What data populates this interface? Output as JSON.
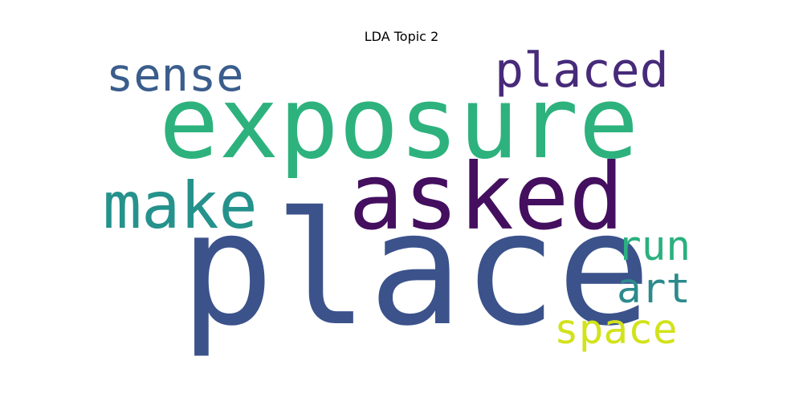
{
  "chart_data": {
    "type": "wordcloud",
    "title": "LDA Topic 2",
    "words": [
      {
        "text": "place",
        "color": "#3b528b"
      },
      {
        "text": "exposure",
        "color": "#2db27d"
      },
      {
        "text": "asked",
        "color": "#440f5f"
      },
      {
        "text": "make",
        "color": "#25928c"
      },
      {
        "text": "sense",
        "color": "#3a5d8c"
      },
      {
        "text": "placed",
        "color": "#472a7a"
      },
      {
        "text": "run",
        "color": "#2ab07f"
      },
      {
        "text": "art",
        "color": "#2d8a8c"
      },
      {
        "text": "space",
        "color": "#d2e21b"
      }
    ]
  }
}
